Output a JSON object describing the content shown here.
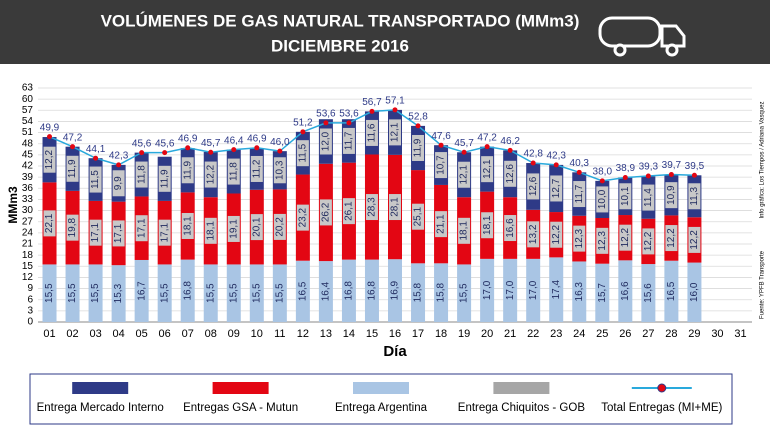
{
  "chart_data": {
    "type": "bar",
    "title": "VOLÚMENES DE GAS NATURAL TRANSPORTADO (MMm3)",
    "subtitle": "DICIEMBRE 2016",
    "y_label": "MMm3",
    "x_label": "Día",
    "source": "Fuente: YPFB Transporte",
    "credit": "Info gráfica: Los Tiempos / Adriana Vasquez",
    "categories": [
      "01",
      "02",
      "03",
      "04",
      "05",
      "06",
      "07",
      "08",
      "09",
      "10",
      "11",
      "12",
      "13",
      "14",
      "15",
      "16",
      "17",
      "18",
      "19",
      "20",
      "21",
      "22",
      "23",
      "24",
      "25",
      "26",
      "27",
      "28",
      "29",
      "30",
      "31"
    ],
    "ylim": [
      0,
      63
    ],
    "yticks": [
      0,
      3,
      6,
      9,
      12,
      15,
      18,
      21,
      24,
      27,
      30,
      33,
      36,
      39,
      42,
      45,
      48,
      51,
      54,
      57,
      60,
      63
    ],
    "series": [
      {
        "name": "Entrega Argentina",
        "color": "#a9c5e4",
        "values": [
          15.5,
          15.5,
          15.5,
          15.3,
          16.7,
          15.5,
          16.8,
          15.5,
          15.5,
          15.5,
          15.5,
          16.5,
          16.4,
          16.8,
          16.8,
          16.9,
          15.8,
          15.8,
          15.5,
          17.0,
          17.0,
          17.0,
          17.4,
          16.3,
          15.7,
          16.6,
          15.6,
          16.5,
          16.0,
          null,
          null
        ],
        "value_labels": [
          "15,5",
          "15,5",
          "15,5",
          "15,3",
          "16,7",
          "15,5",
          "16,8",
          "15,5",
          "15,5",
          "15,5",
          "15,5",
          "16,5",
          "16,4",
          "16,8",
          "16,8",
          "16,9",
          "15,8",
          "15,8",
          "15,5",
          "17,0",
          "17,0",
          "17,0",
          "17,4",
          "16,3",
          "15,7",
          "16,6",
          "15,6",
          "16,5",
          "16,0",
          null,
          null
        ]
      },
      {
        "name": "Entregas GSA - Mutun",
        "color": "#e30613",
        "values": [
          22.1,
          19.8,
          17.1,
          17.1,
          17.1,
          17.1,
          18.1,
          18.1,
          19.1,
          20.1,
          20.2,
          23.2,
          26.2,
          26.1,
          28.3,
          28.1,
          25.1,
          21.1,
          18.1,
          18.1,
          16.6,
          13.2,
          12.2,
          12.3,
          12.3,
          12.2,
          12.2,
          12.2,
          12.2,
          null,
          null
        ],
        "value_labels": [
          "22,1",
          "19,8",
          "17,1",
          "17,1",
          "17,1",
          "17,1",
          "18,1",
          "18,1",
          "19,1",
          "20,1",
          "20,2",
          "23,2",
          "26,2",
          "26,1",
          "28,3",
          "28,1",
          "25,1",
          "21,1",
          "18,1",
          "18,1",
          "16,6",
          "13,2",
          "12,2",
          "12,3",
          "12,3",
          "12,2",
          "12,2",
          "12,2",
          "12,2",
          null,
          null
        ]
      },
      {
        "name": "Entrega Chiquitos - GOB",
        "color": "#a6a6a6",
        "values": [
          null,
          null,
          null,
          null,
          null,
          null,
          null,
          null,
          null,
          null,
          null,
          null,
          null,
          null,
          null,
          null,
          null,
          null,
          null,
          null,
          null,
          null,
          null,
          null,
          null,
          null,
          null,
          null,
          null,
          null,
          null
        ]
      },
      {
        "name": "Entrega Mercado Interno",
        "color": "#2e3a87",
        "values": [
          12.2,
          11.9,
          11.5,
          9.9,
          11.8,
          11.9,
          11.9,
          12.2,
          11.8,
          11.2,
          10.3,
          11.5,
          12.0,
          11.7,
          11.6,
          12.1,
          11.9,
          10.7,
          12.1,
          12.1,
          12.6,
          12.6,
          12.7,
          11.7,
          10.0,
          10.1,
          11.4,
          10.9,
          11.3,
          null,
          null
        ],
        "value_labels": [
          "12,2",
          "11,9",
          "11,5",
          "9,9",
          "11,8",
          "11,9",
          "11,9",
          "12,2",
          "11,8",
          "11,2",
          "10,3",
          "11,5",
          "12,0",
          "11,7",
          "11,6",
          "12,1",
          "11,9",
          "10,7",
          "12,1",
          "12,1",
          "12,6",
          "12,6",
          "12,7",
          "11,7",
          "10,0",
          "10,1",
          "11,4",
          "10,9",
          "11,3",
          null,
          null
        ]
      },
      {
        "name": "Total Entregas (MI+ME)",
        "type": "line",
        "color": "#29a9dc",
        "marker_color": "#e30613",
        "values": [
          49.9,
          47.2,
          44.1,
          42.3,
          45.6,
          45.6,
          46.9,
          45.7,
          46.4,
          46.9,
          46.0,
          51.2,
          53.6,
          53.6,
          56.7,
          57.1,
          52.8,
          47.6,
          45.7,
          47.2,
          46.2,
          42.8,
          42.3,
          40.3,
          38.0,
          38.9,
          39.3,
          39.7,
          39.5,
          null,
          null
        ],
        "value_labels": [
          "49,9",
          "47,2",
          "44,1",
          "42,3",
          "45,6",
          "45,6",
          "46,9",
          "45,7",
          "46,4",
          "46,9",
          "46,0",
          "51,2",
          "53,6",
          "53,6",
          "56,7",
          "57,1",
          "52,8",
          "47,6",
          "45,7",
          "47,2",
          "46,2",
          "42,8",
          "42,3",
          "40,3",
          "38,0",
          "38,9",
          "39,3",
          "39,7",
          "39,5",
          null,
          null
        ]
      }
    ],
    "legend_order": [
      3,
      1,
      0,
      2,
      4
    ]
  }
}
